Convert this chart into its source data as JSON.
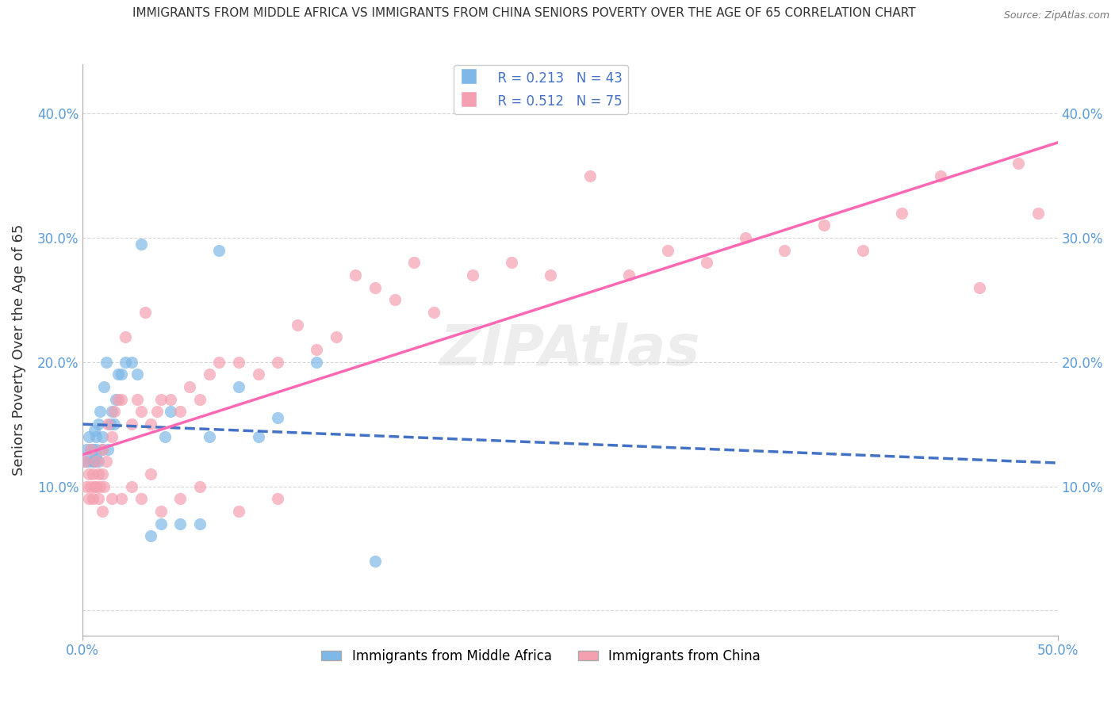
{
  "title": "IMMIGRANTS FROM MIDDLE AFRICA VS IMMIGRANTS FROM CHINA SENIORS POVERTY OVER THE AGE OF 65 CORRELATION CHART",
  "source": "Source: ZipAtlas.com",
  "ylabel": "Seniors Poverty Over the Age of 65",
  "xlim": [
    0.0,
    0.5
  ],
  "ylim": [
    -0.02,
    0.44
  ],
  "yticks": [
    0.0,
    0.1,
    0.2,
    0.3,
    0.4
  ],
  "ytick_labels": [
    "",
    "10.0%",
    "20.0%",
    "30.0%",
    "40.0%"
  ],
  "legend_r1": "R = 0.213",
  "legend_n1": "N = 43",
  "legend_r2": "R = 0.512",
  "legend_n2": "N = 75",
  "color_africa": "#7EB8E8",
  "color_china": "#F4A0B0",
  "color_trendline_africa": "#4472C4",
  "color_trendline_china": "#FF69B4",
  "africa_scatter_x": [
    0.001,
    0.002,
    0.003,
    0.003,
    0.004,
    0.005,
    0.005,
    0.006,
    0.006,
    0.007,
    0.007,
    0.007,
    0.008,
    0.008,
    0.009,
    0.01,
    0.01,
    0.011,
    0.012,
    0.013,
    0.014,
    0.015,
    0.016,
    0.017,
    0.018,
    0.02,
    0.022,
    0.025,
    0.028,
    0.03,
    0.035,
    0.04,
    0.042,
    0.045,
    0.05,
    0.06,
    0.065,
    0.07,
    0.08,
    0.09,
    0.1,
    0.12,
    0.15
  ],
  "africa_scatter_y": [
    0.12,
    0.13,
    0.12,
    0.14,
    0.13,
    0.12,
    0.13,
    0.12,
    0.145,
    0.125,
    0.13,
    0.14,
    0.12,
    0.15,
    0.16,
    0.13,
    0.14,
    0.18,
    0.2,
    0.13,
    0.15,
    0.16,
    0.15,
    0.17,
    0.19,
    0.19,
    0.2,
    0.2,
    0.19,
    0.295,
    0.06,
    0.07,
    0.14,
    0.16,
    0.07,
    0.07,
    0.14,
    0.29,
    0.18,
    0.14,
    0.155,
    0.2,
    0.04
  ],
  "china_scatter_x": [
    0.001,
    0.002,
    0.003,
    0.003,
    0.004,
    0.004,
    0.005,
    0.005,
    0.006,
    0.007,
    0.007,
    0.008,
    0.008,
    0.009,
    0.01,
    0.01,
    0.011,
    0.012,
    0.013,
    0.015,
    0.016,
    0.018,
    0.02,
    0.022,
    0.025,
    0.028,
    0.03,
    0.032,
    0.035,
    0.038,
    0.04,
    0.045,
    0.05,
    0.055,
    0.06,
    0.065,
    0.07,
    0.08,
    0.09,
    0.1,
    0.11,
    0.12,
    0.13,
    0.14,
    0.15,
    0.16,
    0.17,
    0.18,
    0.2,
    0.22,
    0.24,
    0.26,
    0.28,
    0.3,
    0.32,
    0.34,
    0.36,
    0.38,
    0.4,
    0.42,
    0.44,
    0.46,
    0.48,
    0.49,
    0.01,
    0.015,
    0.02,
    0.025,
    0.03,
    0.035,
    0.04,
    0.05,
    0.06,
    0.08,
    0.1
  ],
  "china_scatter_y": [
    0.12,
    0.1,
    0.09,
    0.11,
    0.1,
    0.13,
    0.11,
    0.09,
    0.1,
    0.12,
    0.1,
    0.11,
    0.09,
    0.1,
    0.11,
    0.13,
    0.1,
    0.12,
    0.15,
    0.14,
    0.16,
    0.17,
    0.17,
    0.22,
    0.15,
    0.17,
    0.16,
    0.24,
    0.15,
    0.16,
    0.17,
    0.17,
    0.16,
    0.18,
    0.17,
    0.19,
    0.2,
    0.2,
    0.19,
    0.2,
    0.23,
    0.21,
    0.22,
    0.27,
    0.26,
    0.25,
    0.28,
    0.24,
    0.27,
    0.28,
    0.27,
    0.35,
    0.27,
    0.29,
    0.28,
    0.3,
    0.29,
    0.31,
    0.29,
    0.32,
    0.35,
    0.26,
    0.36,
    0.32,
    0.08,
    0.09,
    0.09,
    0.1,
    0.09,
    0.11,
    0.08,
    0.09,
    0.1,
    0.08,
    0.09
  ]
}
